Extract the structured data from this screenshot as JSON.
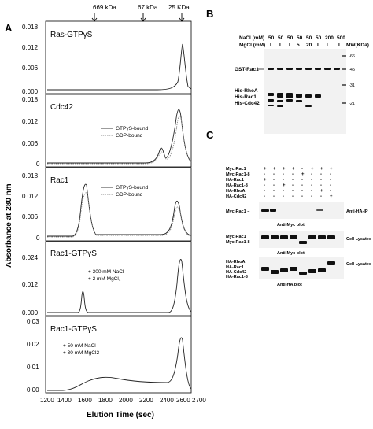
{
  "panel_a": {
    "letter": "A",
    "markers": [
      "669 kDa",
      "67 kDa",
      "25 KDa"
    ],
    "y_axis_label": "Absorbance at 280 nm",
    "x_axis_label": "Elution Time (sec)",
    "x_ticks": [
      "1200",
      "1400",
      "1600",
      "1800",
      "2000",
      "2200",
      "2400",
      "2600",
      "2700"
    ],
    "subplots": [
      {
        "label": "Ras-GTPγS",
        "yticks": [
          "0.018",
          "0.012",
          "0.006",
          "0.000"
        ],
        "legend": [],
        "notes": []
      },
      {
        "label": "Cdc42",
        "yticks": [
          "0.018",
          "0.012",
          "0.006",
          "0"
        ],
        "legend": [
          "GTPγS-bound",
          "GDP-bound"
        ],
        "notes": []
      },
      {
        "label": "Rac1",
        "yticks": [
          "0.018",
          "0.012",
          "0.006",
          "0"
        ],
        "legend": [
          "GTPγS-bound",
          "GDP-bound"
        ],
        "notes": []
      },
      {
        "label": "Rac1-GTPγS",
        "yticks": [
          "0.024",
          "0.012",
          "0.000"
        ],
        "legend": [],
        "notes": [
          "+ 300 mM NaCl",
          "+ 2 mM MgCl₂"
        ]
      },
      {
        "label": "Rac1-GTPγS",
        "yticks": [
          "0.03",
          "0.02",
          "0.01",
          "0.00"
        ],
        "legend": [],
        "notes": [
          "+ 50 mM NaCl",
          "+ 30 mM MgCl2"
        ]
      }
    ]
  },
  "panel_b": {
    "letter": "B",
    "nacl_label": "NaCl (mM)",
    "mgcl_label": "MgCl (mM)",
    "nacl_values": [
      "50",
      "50",
      "50",
      "50",
      "50",
      "50",
      "200",
      "500"
    ],
    "mgcl_values": [
      "I",
      "I",
      "I",
      "5",
      "20",
      "I",
      "I",
      "I"
    ],
    "mw_label": "MW(KDa)",
    "mw_values": [
      "-66",
      "-45",
      "-31",
      "-21"
    ],
    "band_labels": [
      "GST-Rac1",
      "His-RhoA",
      "His-Rac1",
      "His-Cdc42"
    ]
  },
  "panel_c": {
    "letter": "C",
    "row_labels": [
      "Myc-Rac1",
      "Myc-Rac1-8",
      "HA-Rac1",
      "HA-Rac1-8",
      "HA-RhoA",
      "HA-Cdc42"
    ],
    "signs": [
      [
        "+",
        "+",
        "+",
        "+",
        "-",
        "+",
        "+",
        "+"
      ],
      [
        "-",
        "-",
        "-",
        "-",
        "+",
        "-",
        "-",
        "-"
      ],
      [
        "+",
        "-",
        "-",
        "-",
        "-",
        "-",
        "-",
        "-"
      ],
      [
        "-",
        "-",
        "+",
        "-",
        "-",
        "-",
        "-",
        "-"
      ],
      [
        "-",
        "-",
        "-",
        "-",
        "-",
        "-",
        "+",
        "-"
      ],
      [
        "-",
        "-",
        "-",
        "-",
        "-",
        "-",
        "-",
        "+"
      ]
    ],
    "blot1": {
      "left": "Myc-Rac1 –",
      "right": "Anti-HA-IP",
      "caption": "Anti-Myc blot"
    },
    "blot2": {
      "left": [
        "Myc-Rac1",
        "Myc-Rac1-8"
      ],
      "right": "Cell Lysates",
      "caption": "Anti-Myc blot"
    },
    "blot3": {
      "left": [
        "HA-RhoA",
        "HA-Rac1",
        "HA-Cdc42",
        "HA-Rac1-8"
      ],
      "right": "Cell Lysates",
      "caption": "Anti-HA blot"
    }
  }
}
